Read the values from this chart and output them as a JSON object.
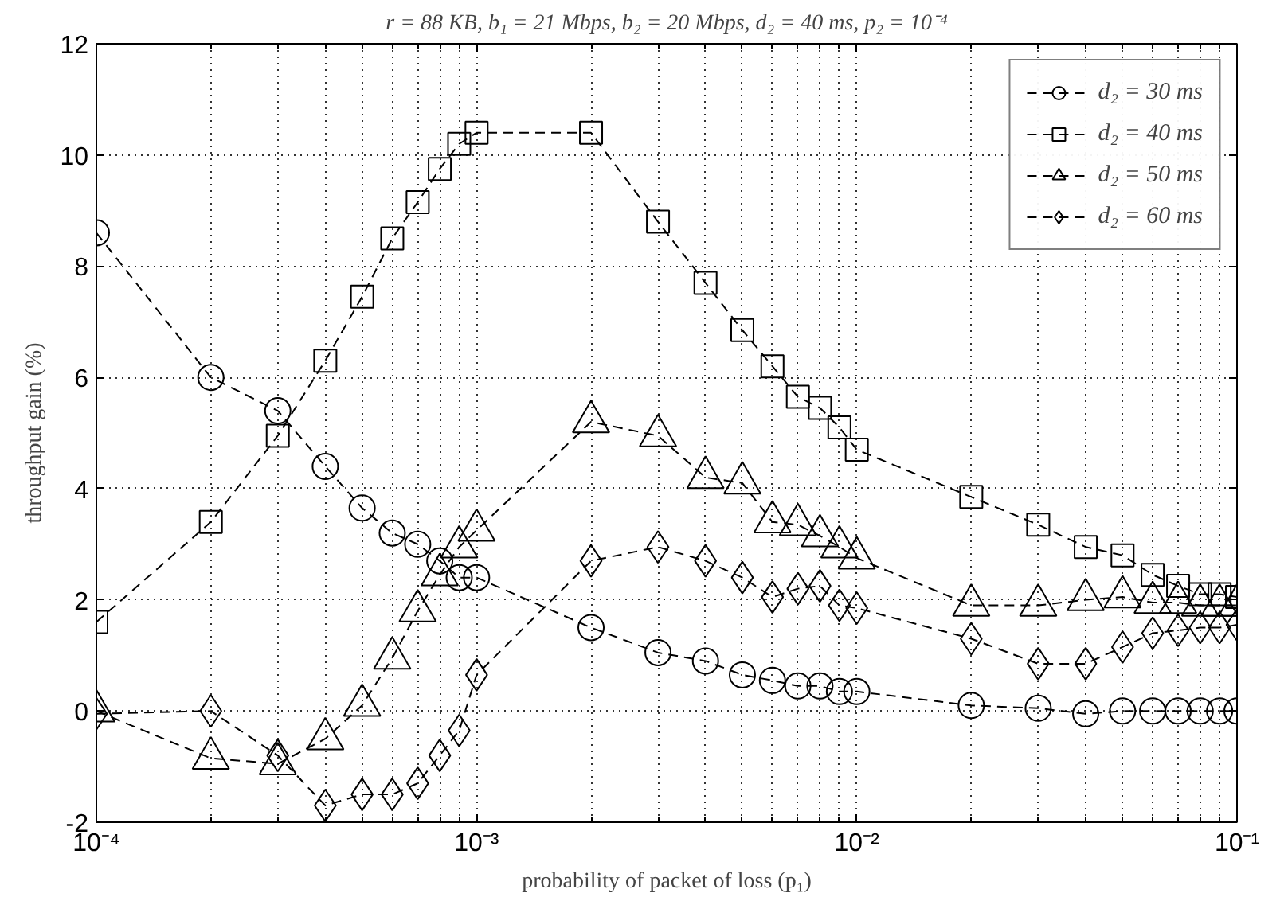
{
  "chart_data": {
    "type": "line",
    "title": "r = 88 KB, b₁ = 21 Mbps, b₂ = 20 Mbps, d₂ = 40 ms, p₂ = 10⁻⁴",
    "xlabel": "probability of packet of loss (p₁)",
    "ylabel": "throughput gain (%)",
    "x": [
      0.0001,
      0.0002,
      0.0003,
      0.0004,
      0.0005,
      0.0006,
      0.0007,
      0.0008,
      0.0009,
      0.001,
      0.002,
      0.003,
      0.004,
      0.005,
      0.006,
      0.007,
      0.008,
      0.009,
      0.01,
      0.02,
      0.03,
      0.04,
      0.05,
      0.06,
      0.07,
      0.08,
      0.09,
      0.1
    ],
    "series": [
      {
        "name": "d₂ = 30 ms",
        "color": "#000000",
        "marker": "circle",
        "values": [
          8.6,
          6.0,
          5.4,
          4.4,
          3.65,
          3.2,
          3.0,
          2.7,
          2.4,
          2.4,
          1.5,
          1.05,
          0.9,
          0.65,
          0.55,
          0.45,
          0.45,
          0.35,
          0.35,
          0.1,
          0.05,
          -0.05,
          0.0,
          0.0,
          0.0,
          0.0,
          0.0,
          0.0
        ]
      },
      {
        "name": "d₂ = 40 ms",
        "color": "#000000",
        "marker": "square",
        "values": [
          1.6,
          3.4,
          4.95,
          6.3,
          7.45,
          8.5,
          9.15,
          9.75,
          10.2,
          10.4,
          10.4,
          8.8,
          7.7,
          6.85,
          6.2,
          5.65,
          5.45,
          5.1,
          4.7,
          3.85,
          3.35,
          2.95,
          2.8,
          2.45,
          2.25,
          2.1,
          2.1,
          2.05
        ]
      },
      {
        "name": "d₂ = 50 ms",
        "color": "#000000",
        "marker": "triangle",
        "values": [
          0.0,
          -0.85,
          -0.95,
          -0.5,
          0.1,
          0.95,
          1.8,
          2.45,
          2.95,
          3.25,
          5.2,
          4.95,
          4.2,
          4.1,
          3.4,
          3.35,
          3.15,
          2.95,
          2.75,
          1.9,
          1.9,
          2.0,
          2.05,
          1.95,
          1.95,
          1.9,
          1.9,
          1.9
        ]
      },
      {
        "name": "d₂ = 60 ms",
        "color": "#000000",
        "marker": "diamond",
        "values": [
          -0.05,
          0.0,
          -0.8,
          -1.7,
          -1.5,
          -1.5,
          -1.3,
          -0.8,
          -0.35,
          0.65,
          2.7,
          2.95,
          2.7,
          2.4,
          2.05,
          2.2,
          2.25,
          1.9,
          1.85,
          1.3,
          0.85,
          0.85,
          1.15,
          1.4,
          1.45,
          1.5,
          1.5,
          1.55
        ]
      }
    ],
    "log": "x",
    "xlim": [
      0.0001,
      0.1
    ],
    "xticks": [
      {
        "value": 0.0001,
        "label": "10⁻⁴"
      },
      {
        "value": 0.001,
        "label": "10⁻³"
      },
      {
        "value": 0.01,
        "label": "10⁻²"
      },
      {
        "value": 0.1,
        "label": "10⁻¹"
      }
    ],
    "ylim": [
      -2,
      12
    ],
    "yticks": [
      -2,
      0,
      2,
      4,
      6,
      8,
      10,
      12
    ],
    "grid": true,
    "legend": "top right",
    "line_style": "dashed"
  }
}
